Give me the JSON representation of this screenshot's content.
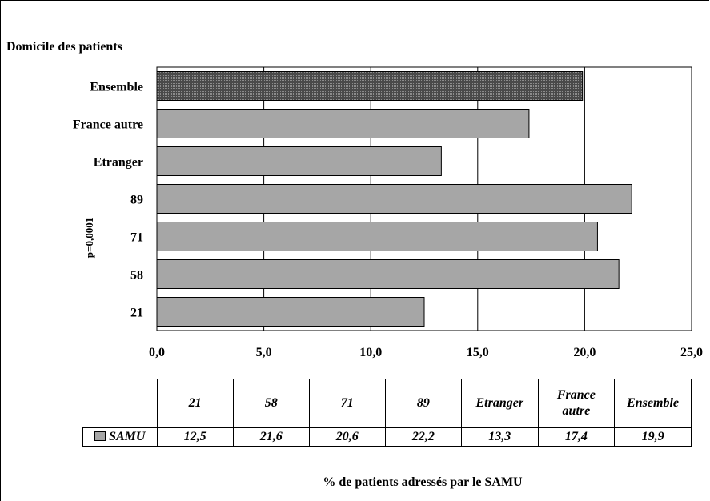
{
  "chart_data": {
    "type": "bar",
    "orientation": "horizontal",
    "title": "Domicile des patients",
    "xlabel": "% de patients adressés par le SAMU",
    "side_annotation": "p=0,0001",
    "categories": [
      "21",
      "58",
      "71",
      "89",
      "Etranger",
      "France autre",
      "Ensemble"
    ],
    "category_labels": [
      "21",
      "58",
      "71",
      "89",
      "Etranger",
      "France autre",
      "Ensemble"
    ],
    "table_headers": [
      "21",
      "58",
      "71",
      "89",
      "Etranger",
      "France autre",
      "Ensemble"
    ],
    "series": [
      {
        "name": "SAMU",
        "values": [
          12.5,
          21.6,
          20.6,
          22.2,
          13.3,
          17.4,
          19.9
        ],
        "value_labels": [
          "12,5",
          "21,6",
          "20,6",
          "22,2",
          "13,3",
          "17,4",
          "19,9"
        ]
      }
    ],
    "xlim": [
      0,
      25
    ],
    "xticks": [
      "0,0",
      "5,0",
      "10,0",
      "15,0",
      "20,0",
      "25,0"
    ],
    "grid": true,
    "legend": "data-table",
    "colors": {
      "bar": "#a6a6a6",
      "highlight": "#595959",
      "grid": "#000000"
    }
  }
}
